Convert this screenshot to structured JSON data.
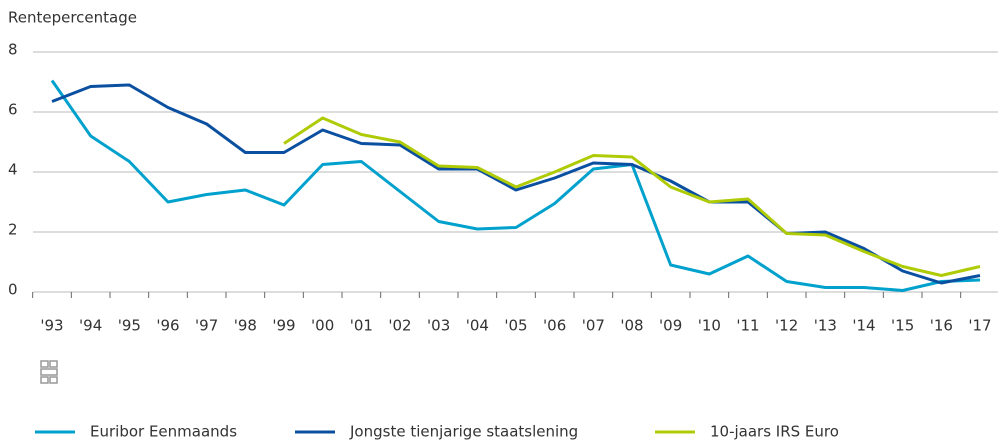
{
  "chart_data": {
    "type": "line",
    "y_label": "Rentepercentage",
    "categories": [
      "'93",
      "'94",
      "'95",
      "'96",
      "'97",
      "'98",
      "'99",
      "'00",
      "'01",
      "'02",
      "'03",
      "'04",
      "'05",
      "'06",
      "'07",
      "'08",
      "'09",
      "'10",
      "'11",
      "'12",
      "'13",
      "'14",
      "'15",
      "'16",
      "'17"
    ],
    "series": [
      {
        "name": "Euribor Eenmaands",
        "color": "#00a1cd",
        "values": [
          7.05,
          5.2,
          4.35,
          3.0,
          3.25,
          3.4,
          2.9,
          4.25,
          4.35,
          3.35,
          2.35,
          2.1,
          2.15,
          2.95,
          4.1,
          4.25,
          0.9,
          0.6,
          1.2,
          0.35,
          0.15,
          0.15,
          0.05,
          0.35,
          0.4
        ]
      },
      {
        "name": "Jongste tienjarige staatslening",
        "color": "#0a4fa0",
        "values": [
          6.35,
          6.85,
          6.9,
          6.15,
          5.6,
          4.65,
          4.65,
          5.4,
          4.95,
          4.9,
          4.1,
          4.1,
          3.4,
          3.8,
          4.3,
          4.25,
          3.7,
          3.0,
          3.0,
          1.95,
          2.0,
          1.45,
          0.7,
          0.3,
          0.55
        ]
      },
      {
        "name": "10-jaars IRS Euro",
        "color": "#afcb05",
        "values": [
          null,
          null,
          null,
          null,
          null,
          null,
          4.95,
          5.8,
          5.25,
          5.0,
          4.2,
          4.15,
          3.5,
          4.0,
          4.55,
          4.5,
          3.5,
          3.0,
          3.1,
          1.95,
          1.9,
          1.35,
          0.85,
          0.55,
          0.85
        ]
      }
    ],
    "ylim": [
      0,
      8
    ],
    "yticks": [
      0,
      2,
      4,
      6,
      8
    ],
    "grid": true,
    "legend": "bottom"
  }
}
